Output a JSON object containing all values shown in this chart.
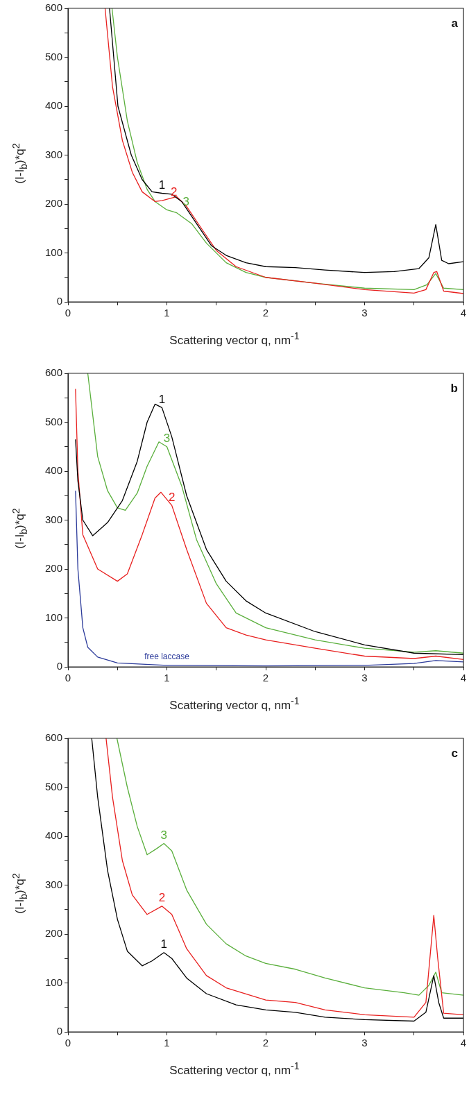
{
  "chart_data": [
    {
      "type": "line",
      "xlabel": "Scattering vector q, nm$^{-1}$",
      "ylabel": "(I-I$_{b}$)*q$^{2}$",
      "marker": "none",
      "xlim": [
        0,
        4
      ],
      "ylim": [
        0,
        600
      ],
      "xticks": [
        0,
        {
          "value": 0.5,
          "label": null
        },
        1,
        {
          "value": 1.5,
          "label": null
        },
        2,
        {
          "value": 2.5,
          "label": null
        },
        3,
        {
          "value": 3.5,
          "label": null
        },
        4
      ],
      "yticks": [
        0,
        {
          "value": 50,
          "label": null
        },
        100,
        {
          "value": 150,
          "label": null
        },
        200,
        {
          "value": 250,
          "label": null
        },
        300,
        {
          "value": 350,
          "label": null
        },
        400,
        {
          "value": 450,
          "label": null
        },
        500,
        {
          "value": 550,
          "label": null
        },
        600
      ],
      "annotations": [
        "a"
      ],
      "series": [
        {
          "name": "1",
          "color": "#000000",
          "x": [
            0.42,
            0.505,
            0.64,
            0.75,
            0.85,
            0.95,
            1.05,
            1.15,
            1.3,
            1.45,
            1.6,
            1.8,
            2.0,
            2.3,
            2.6,
            3.0,
            3.3,
            3.55,
            3.65,
            3.72,
            3.78,
            3.85,
            4.0
          ],
          "values": [
            600,
            400,
            300,
            250,
            225,
            222,
            220,
            205,
            160,
            115,
            95,
            80,
            72,
            70,
            65,
            60,
            62,
            68,
            90,
            158,
            85,
            78,
            82
          ]
        },
        {
          "name": "2",
          "color": "#e8201f",
          "x": [
            0.375,
            0.45,
            0.55,
            0.65,
            0.75,
            0.88,
            0.95,
            1.1,
            1.2,
            1.35,
            1.5,
            1.7,
            2.0,
            2.5,
            3.0,
            3.5,
            3.62,
            3.7,
            3.73,
            3.8,
            4.0
          ],
          "values": [
            600,
            440,
            330,
            265,
            225,
            205,
            207,
            215,
            195,
            150,
            105,
            72,
            50,
            38,
            25,
            18,
            25,
            60,
            62,
            22,
            17
          ]
        },
        {
          "name": "3",
          "color": "#5aaf3c",
          "x": [
            0.445,
            0.5,
            0.6,
            0.7,
            0.8,
            0.88,
            1.0,
            1.1,
            1.25,
            1.4,
            1.6,
            1.8,
            2.0,
            2.5,
            3.0,
            3.5,
            3.63,
            3.72,
            3.8,
            4.0
          ],
          "values": [
            600,
            500,
            370,
            285,
            230,
            205,
            188,
            182,
            160,
            120,
            80,
            60,
            50,
            38,
            28,
            25,
            35,
            58,
            28,
            25
          ]
        }
      ]
    },
    {
      "type": "line",
      "xlabel": "Scattering vector q, nm$^{-1}$",
      "ylabel": "(I-I$_{b}$)*q$^{2}$",
      "marker": "none",
      "xlim": [
        0,
        4
      ],
      "ylim": [
        0,
        600
      ],
      "xticks": [
        0,
        {
          "value": 0.5,
          "label": null
        },
        1,
        {
          "value": 1.5,
          "label": null
        },
        2,
        {
          "value": 2.5,
          "label": null
        },
        3,
        {
          "value": 3.5,
          "label": null
        },
        4
      ],
      "yticks": [
        0,
        {
          "value": 50,
          "label": null
        },
        100,
        {
          "value": 150,
          "label": null
        },
        200,
        {
          "value": 250,
          "label": null
        },
        300,
        {
          "value": 350,
          "label": null
        },
        400,
        {
          "value": 450,
          "label": null
        },
        500,
        {
          "value": 550,
          "label": null
        },
        600
      ],
      "annotations": [
        "b"
      ],
      "series": [
        {
          "name": "1",
          "color": "#000000",
          "x": [
            0.076,
            0.1,
            0.15,
            0.25,
            0.4,
            0.55,
            0.7,
            0.8,
            0.88,
            0.95,
            1.05,
            1.2,
            1.4,
            1.6,
            1.8,
            2.0,
            2.5,
            3.0,
            3.5,
            4.0
          ],
          "values": [
            465,
            380,
            300,
            268,
            295,
            340,
            420,
            500,
            537,
            530,
            470,
            350,
            240,
            175,
            135,
            110,
            72,
            45,
            28,
            25
          ]
        },
        {
          "name": "2",
          "color": "#e8201f",
          "x": [
            0.076,
            0.1,
            0.15,
            0.3,
            0.5,
            0.6,
            0.75,
            0.88,
            0.94,
            1.05,
            1.2,
            1.4,
            1.6,
            1.8,
            2.0,
            2.5,
            3.0,
            3.5,
            3.72,
            4.0
          ],
          "values": [
            568,
            400,
            270,
            200,
            175,
            190,
            270,
            345,
            357,
            330,
            240,
            130,
            80,
            65,
            55,
            38,
            22,
            17,
            22,
            15
          ]
        },
        {
          "name": "3",
          "color": "#5aaf3c",
          "x": [
            0.2,
            0.3,
            0.4,
            0.5,
            0.58,
            0.7,
            0.8,
            0.92,
            1.0,
            1.15,
            1.3,
            1.5,
            1.7,
            2.0,
            2.5,
            3.0,
            3.5,
            3.72,
            4.0
          ],
          "values": [
            600,
            430,
            360,
            325,
            320,
            355,
            410,
            460,
            450,
            370,
            260,
            170,
            110,
            80,
            55,
            38,
            30,
            33,
            28
          ]
        },
        {
          "name": "free laccase",
          "color": "#2b3a9a",
          "x": [
            0.076,
            0.1,
            0.15,
            0.2,
            0.3,
            0.5,
            1.0,
            2.0,
            3.0,
            3.5,
            3.72,
            4.0
          ],
          "values": [
            360,
            200,
            80,
            40,
            20,
            8,
            3,
            2,
            3,
            7,
            13,
            10
          ]
        }
      ]
    },
    {
      "type": "line",
      "xlabel": "Scattering vector q, nm$^{-1}$",
      "ylabel": "(I-I$_{b}$)*q$^{2}$",
      "marker": "none",
      "xlim": [
        0,
        4
      ],
      "ylim": [
        0,
        600
      ],
      "xticks": [
        0,
        {
          "value": 0.5,
          "label": null
        },
        1,
        {
          "value": 1.5,
          "label": null
        },
        2,
        {
          "value": 2.5,
          "label": null
        },
        3,
        {
          "value": 3.5,
          "label": null
        },
        4
      ],
      "yticks": [
        0,
        {
          "value": 50,
          "label": null
        },
        100,
        {
          "value": 150,
          "label": null
        },
        200,
        {
          "value": 250,
          "label": null
        },
        300,
        {
          "value": 350,
          "label": null
        },
        400,
        {
          "value": 450,
          "label": null
        },
        500,
        {
          "value": 550,
          "label": null
        },
        600
      ],
      "annotations": [
        "c"
      ],
      "series": [
        {
          "name": "1",
          "color": "#000000",
          "x": [
            0.24,
            0.3,
            0.4,
            0.5,
            0.6,
            0.75,
            0.85,
            0.97,
            1.05,
            1.2,
            1.4,
            1.7,
            2.0,
            2.3,
            2.6,
            3.0,
            3.5,
            3.62,
            3.7,
            3.75,
            3.8,
            4.0
          ],
          "values": [
            600,
            480,
            330,
            230,
            165,
            135,
            145,
            162,
            150,
            110,
            78,
            55,
            45,
            40,
            30,
            25,
            22,
            40,
            115,
            60,
            28,
            28
          ]
        },
        {
          "name": "2",
          "color": "#e8201f",
          "x": [
            0.385,
            0.45,
            0.55,
            0.65,
            0.8,
            0.95,
            1.05,
            1.2,
            1.4,
            1.6,
            2.0,
            2.3,
            2.6,
            3.0,
            3.5,
            3.62,
            3.7,
            3.74,
            3.8,
            4.0
          ],
          "values": [
            600,
            480,
            350,
            280,
            240,
            257,
            240,
            170,
            115,
            90,
            65,
            60,
            45,
            35,
            30,
            60,
            238,
            150,
            38,
            35
          ]
        },
        {
          "name": "3",
          "color": "#5aaf3c",
          "x": [
            0.495,
            0.6,
            0.7,
            0.8,
            0.9,
            0.97,
            1.05,
            1.2,
            1.4,
            1.6,
            1.8,
            2.0,
            2.3,
            2.6,
            3.0,
            3.4,
            3.55,
            3.65,
            3.72,
            3.78,
            4.0
          ],
          "values": [
            600,
            500,
            420,
            362,
            375,
            385,
            370,
            290,
            220,
            180,
            155,
            140,
            128,
            110,
            90,
            80,
            75,
            95,
            122,
            80,
            75
          ]
        }
      ]
    }
  ]
}
